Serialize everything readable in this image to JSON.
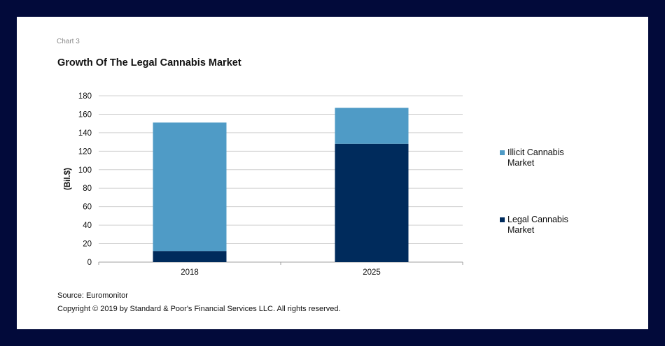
{
  "header": {
    "chart_label": "Chart 3",
    "title": "Growth Of The Legal Cannabis Market"
  },
  "footer": {
    "source": "Source: Euromonitor",
    "copyright": "Copyright © 2019 by Standard & Poor's Financial Services LLC. All rights reserved."
  },
  "colors": {
    "illicit": "#4f9bc6",
    "legal": "#002b5c",
    "grid": "#d0d0d0"
  },
  "chart_data": {
    "type": "bar",
    "stacked": true,
    "title": "Growth Of The Legal Cannabis Market",
    "xlabel": "",
    "ylabel": "(Bil.$)",
    "ylim": [
      0,
      180
    ],
    "yticks": [
      0,
      20,
      40,
      60,
      80,
      100,
      120,
      140,
      160,
      180
    ],
    "grid": true,
    "legend_position": "right",
    "categories": [
      "2018",
      "2025"
    ],
    "series": [
      {
        "name": "Legal Cannabis Market",
        "values": [
          12,
          128
        ]
      },
      {
        "name": "Illicit Cannabis Market",
        "values": [
          139,
          39
        ]
      }
    ]
  }
}
